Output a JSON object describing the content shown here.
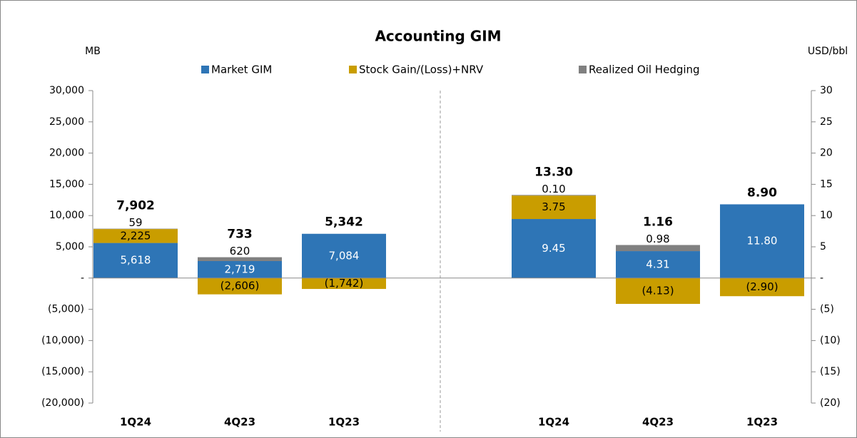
{
  "chart_data": [
    {
      "type": "bar",
      "stacked": true,
      "title": "Accounting GIM",
      "ylabel": "MB",
      "categories": [
        "1Q24",
        "4Q23",
        "1Q23"
      ],
      "series": [
        {
          "name": "Market GIM",
          "color": "#2e75b6",
          "values": [
            5618,
            2719,
            7084
          ],
          "value_labels": [
            "5,618",
            "2,719",
            "7,084"
          ]
        },
        {
          "name": "Stock Gain/(Loss)+NRV",
          "color": "#c99d00",
          "values": [
            2225,
            -2606,
            -1742
          ],
          "value_labels": [
            "2,225",
            "(2,606)",
            "(1,742)"
          ]
        },
        {
          "name": "Realized Oil Hedging",
          "color": "#808080",
          "values": [
            59,
            620,
            null
          ],
          "value_labels": [
            "59",
            "620",
            null
          ]
        }
      ],
      "totals": [
        7902,
        733,
        5342
      ],
      "total_labels": [
        "7,902",
        "733",
        "5,342"
      ],
      "ylim": [
        -20000,
        30000
      ],
      "yticks": [
        {
          "value": -20000,
          "label": "(20,000)"
        },
        {
          "value": -15000,
          "label": "(15,000)"
        },
        {
          "value": -10000,
          "label": "(10,000)"
        },
        {
          "value": -5000,
          "label": "(5,000)"
        },
        {
          "value": 0,
          "label": "-"
        },
        {
          "value": 5000,
          "label": "5,000"
        },
        {
          "value": 10000,
          "label": "10,000"
        },
        {
          "value": 15000,
          "label": "15,000"
        },
        {
          "value": 20000,
          "label": "20,000"
        },
        {
          "value": 25000,
          "label": "25,000"
        },
        {
          "value": 30000,
          "label": "30,000"
        }
      ]
    },
    {
      "type": "bar",
      "stacked": true,
      "ylabel": "USD/bbl",
      "categories": [
        "1Q24",
        "4Q23",
        "1Q23"
      ],
      "series": [
        {
          "color": "#2e75b6",
          "values": [
            9.45,
            4.31,
            11.8
          ],
          "value_labels": [
            "9.45",
            "4.31",
            "11.80"
          ]
        },
        {
          "color": "#c99d00",
          "values": [
            3.75,
            -4.13,
            -2.9
          ],
          "value_labels": [
            "3.75",
            "(4.13)",
            "(2.90)"
          ]
        },
        {
          "color": "#808080",
          "values": [
            0.1,
            0.98,
            null
          ],
          "value_labels": [
            "0.10",
            "0.98",
            null
          ]
        }
      ],
      "totals": [
        13.3,
        1.16,
        8.9
      ],
      "total_labels": [
        "13.30",
        "1.16",
        "8.90"
      ],
      "ylim": [
        -20,
        30
      ],
      "yticks": [
        {
          "value": -20,
          "label": "(20)"
        },
        {
          "value": -15,
          "label": "(15)"
        },
        {
          "value": -10,
          "label": "(10)"
        },
        {
          "value": -5,
          "label": "(5)"
        },
        {
          "value": 0,
          "label": "-"
        },
        5,
        10,
        15,
        20,
        25,
        30
      ]
    }
  ]
}
